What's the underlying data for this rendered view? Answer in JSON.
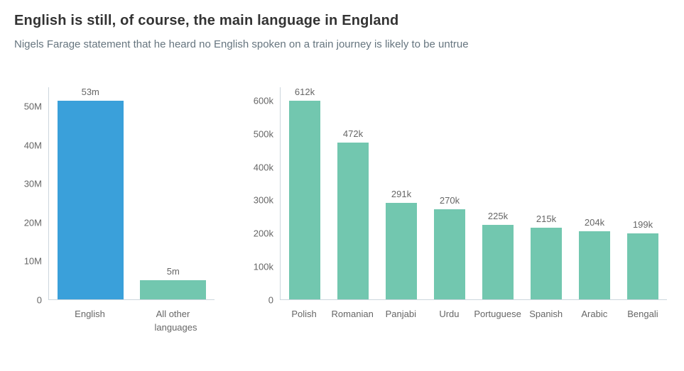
{
  "header": {
    "title": "English is still, of course, the main language in England",
    "subtitle": "Nigels Farage statement that he heard no English spoken on a train journey is likely to be untrue"
  },
  "colors": {
    "english_bar": "#3aa0da",
    "other_bars": "#72c7af",
    "axis_line": "#ccd6dd",
    "label_text": "#666666"
  },
  "chart_data": [
    {
      "type": "bar",
      "title": "",
      "xlabel": "",
      "ylabel": "",
      "grid": false,
      "legend": false,
      "categories": [
        "English",
        "All other languages"
      ],
      "values": [
        53000000,
        5000000
      ],
      "value_labels": [
        "53m",
        "5m"
      ],
      "bar_colors": [
        "#3aa0da",
        "#72c7af"
      ],
      "yticks": [
        0,
        10000000,
        20000000,
        30000000,
        40000000,
        50000000
      ],
      "ytick_labels": [
        "0",
        "10M",
        "20M",
        "30M",
        "40M",
        "50M"
      ],
      "ylim": [
        0,
        55000000
      ]
    },
    {
      "type": "bar",
      "title": "",
      "xlabel": "",
      "ylabel": "",
      "grid": false,
      "legend": false,
      "categories": [
        "Polish",
        "Romanian",
        "Panjabi",
        "Urdu",
        "Portuguese",
        "Spanish",
        "Arabic",
        "Bengali"
      ],
      "values": [
        612000,
        472000,
        291000,
        270000,
        225000,
        215000,
        204000,
        199000
      ],
      "value_labels": [
        "612k",
        "472k",
        "291k",
        "270k",
        "225k",
        "215k",
        "204k",
        "199k"
      ],
      "bar_colors": [
        "#72c7af",
        "#72c7af",
        "#72c7af",
        "#72c7af",
        "#72c7af",
        "#72c7af",
        "#72c7af",
        "#72c7af"
      ],
      "yticks": [
        0,
        100000,
        200000,
        300000,
        400000,
        500000,
        600000
      ],
      "ytick_labels": [
        "0",
        "100k",
        "200k",
        "300k",
        "400k",
        "500k",
        "600k"
      ],
      "ylim": [
        0,
        640000
      ]
    }
  ]
}
